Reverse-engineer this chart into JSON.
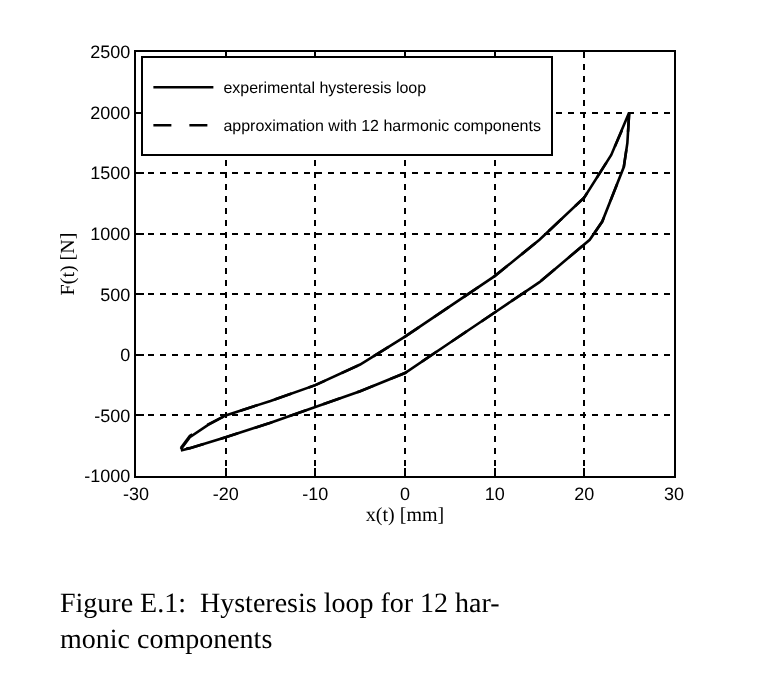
{
  "chart_data": {
    "type": "line",
    "xlabel": "x(t) [mm]",
    "ylabel": "F(t) [N]",
    "xlim": [
      -30,
      30
    ],
    "xticks": [
      -30,
      -20,
      -10,
      0,
      10,
      20,
      30
    ],
    "ylim": [
      -1000,
      2500
    ],
    "yticks": [
      -1000,
      -500,
      0,
      500,
      1000,
      1500,
      2000,
      2500
    ],
    "grid": true,
    "legend": "top left",
    "marker": "none",
    "series": [
      {
        "name": "experimental hysteresis loop",
        "color": "#000000",
        "line_style": "solid",
        "x": [
          -25,
          -24,
          -22,
          -20,
          -15,
          -10,
          -5,
          0,
          5,
          10,
          15,
          20,
          23,
          25,
          24.8,
          24.4,
          22,
          20.6,
          15,
          10,
          5,
          0,
          -5,
          -10,
          -15,
          -20,
          -24,
          -25
        ],
        "values": [
          -780,
          -680,
          -580,
          -500,
          -380,
          -250,
          -80,
          150,
          400,
          650,
          950,
          1300,
          1650,
          2000,
          1750,
          1550,
          1100,
          950,
          600,
          350,
          100,
          -150,
          -300,
          -430,
          -560,
          -680,
          -770,
          -790
        ]
      },
      {
        "name": "approximation with 12 harmonic components",
        "color": "#000000",
        "line_style": "dashed",
        "x": [
          -25,
          -24,
          -22,
          -20,
          -15,
          -10,
          -5,
          0,
          5,
          10,
          15,
          20,
          23,
          25,
          24.8,
          24.4,
          22,
          20.6,
          15,
          10,
          5,
          0,
          -5,
          -10,
          -15,
          -20,
          -24,
          -25
        ],
        "values": [
          -770,
          -670,
          -575,
          -500,
          -380,
          -250,
          -80,
          150,
          400,
          650,
          950,
          1300,
          1650,
          1990,
          1750,
          1550,
          1100,
          950,
          600,
          350,
          100,
          -150,
          -300,
          -430,
          -560,
          -680,
          -770,
          -780
        ]
      }
    ],
    "annotations": [
      "Figure E.1:  Hysteresis loop for 12 har-\nmonic components"
    ]
  }
}
